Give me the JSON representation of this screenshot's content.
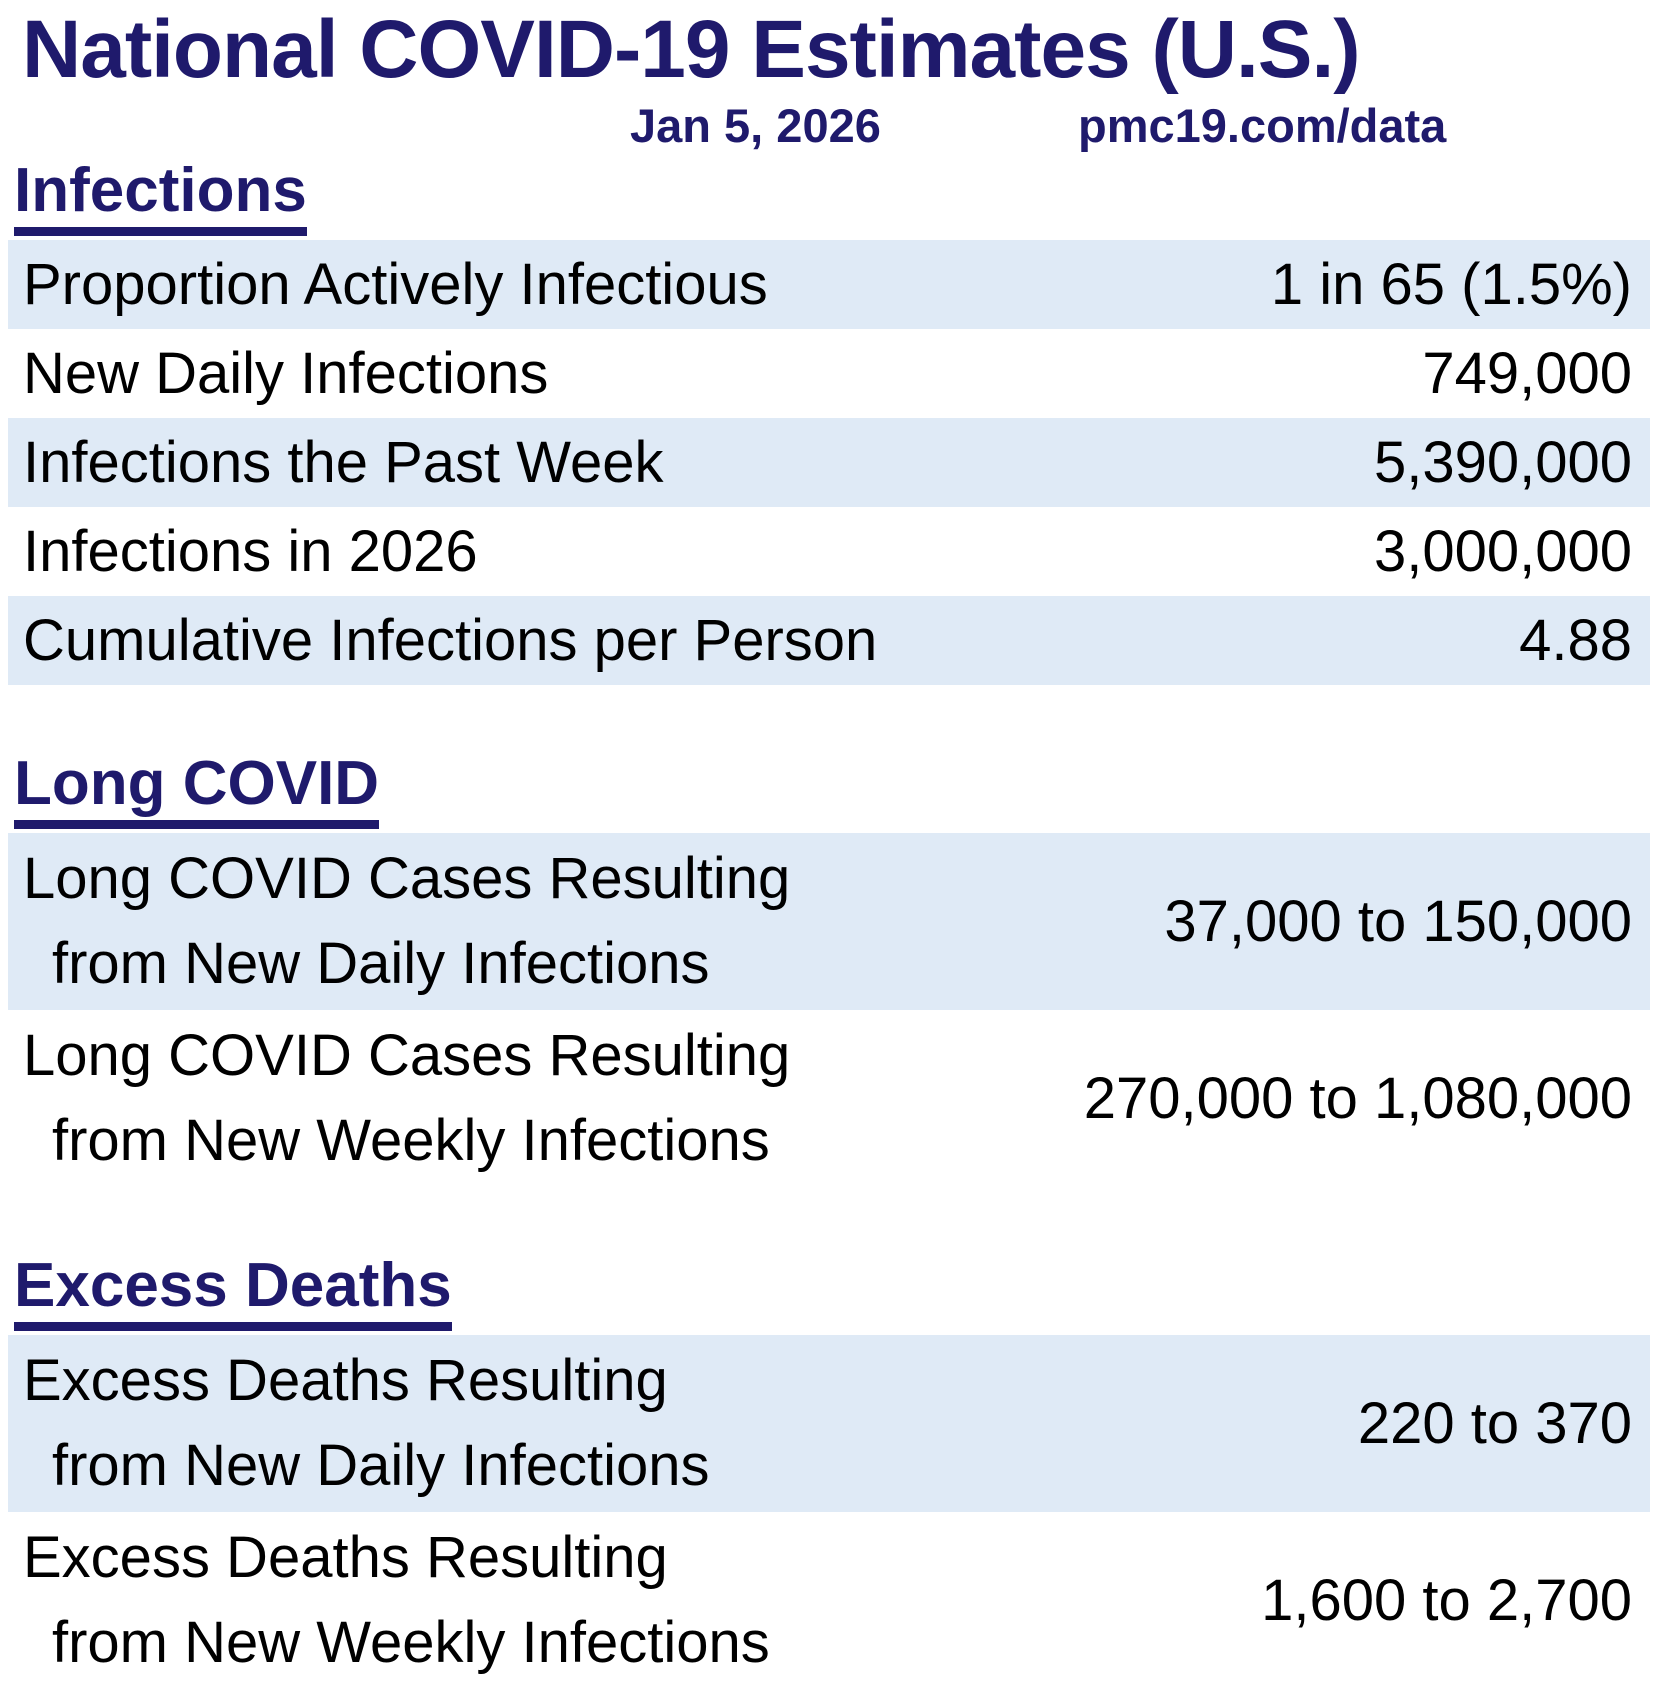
{
  "header": {
    "title": "National COVID-19 Estimates (U.S.)",
    "date": "Jan 5, 2026",
    "url": "pmc19.com/data"
  },
  "colors": {
    "navy": "#1f1a6c",
    "row_highlight": "#dfeaf6",
    "text": "#000000",
    "background": "#ffffff"
  },
  "sections": [
    {
      "heading": "Infections",
      "rows": [
        {
          "label": "Proportion Actively Infectious",
          "label2": "",
          "value": "1 in 65 (1.5%)"
        },
        {
          "label": "New Daily Infections",
          "label2": "",
          "value": "749,000"
        },
        {
          "label": "Infections the Past Week",
          "label2": "",
          "value": "5,390,000"
        },
        {
          "label": "Infections in 2026",
          "label2": "",
          "value": "3,000,000"
        },
        {
          "label": "Cumulative Infections per Person",
          "label2": "",
          "value": "4.88"
        }
      ]
    },
    {
      "heading": "Long COVID",
      "rows": [
        {
          "label": "Long COVID Cases Resulting",
          "label2": "from New Daily Infections",
          "value": "37,000 to 150,000"
        },
        {
          "label": "Long COVID Cases Resulting",
          "label2": "from New Weekly Infections",
          "value": "270,000 to 1,080,000"
        }
      ]
    },
    {
      "heading": "Excess Deaths",
      "rows": [
        {
          "label": "Excess Deaths Resulting",
          "label2": "from New Daily Infections",
          "value": "220 to 370"
        },
        {
          "label": "Excess Deaths Resulting",
          "label2": "from New Weekly Infections",
          "value": "1,600 to 2,700"
        }
      ]
    }
  ]
}
